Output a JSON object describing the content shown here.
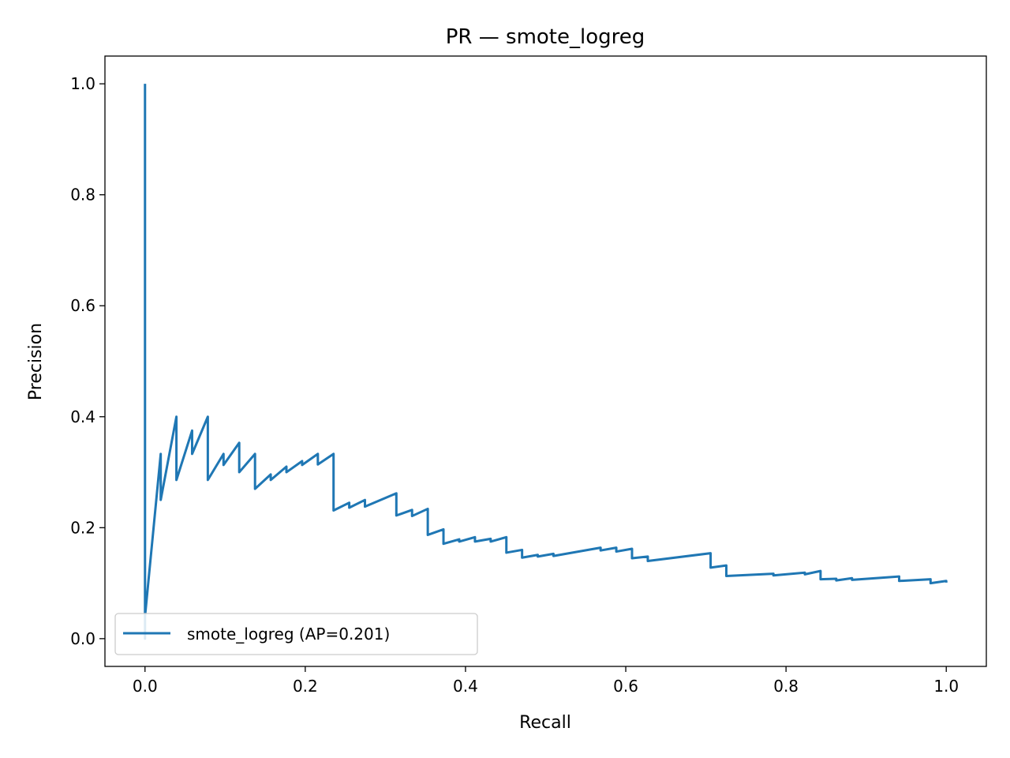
{
  "chart_data": {
    "type": "line",
    "title": "PR — smote_logreg",
    "xlabel": "Recall",
    "ylabel": "Precision",
    "xlim": [
      -0.05,
      1.05
    ],
    "ylim": [
      -0.05,
      1.05
    ],
    "xticks": [
      0.0,
      0.2,
      0.4,
      0.6,
      0.8,
      1.0
    ],
    "xtick_labels": [
      "0.0",
      "0.2",
      "0.4",
      "0.6",
      "0.8",
      "1.0"
    ],
    "yticks": [
      0.0,
      0.2,
      0.4,
      0.6,
      0.8,
      1.0
    ],
    "ytick_labels": [
      "0.0",
      "0.2",
      "0.4",
      "0.6",
      "0.8",
      "1.0"
    ],
    "grid": false,
    "legend": {
      "placement": "lower-left",
      "entries": [
        "smote_logreg (AP=0.201)"
      ]
    },
    "series": [
      {
        "name": "smote_logreg (AP=0.201)",
        "color": "#1f77b4",
        "points": [
          [
            0.0,
            1.0
          ],
          [
            0.0,
            0.0
          ],
          [
            0.0,
            0.04
          ],
          [
            0.0196,
            0.333
          ],
          [
            0.0196,
            0.25
          ],
          [
            0.0392,
            0.4
          ],
          [
            0.0392,
            0.286
          ],
          [
            0.0588,
            0.375
          ],
          [
            0.0588,
            0.333
          ],
          [
            0.0784,
            0.4
          ],
          [
            0.0784,
            0.286
          ],
          [
            0.098,
            0.333
          ],
          [
            0.098,
            0.313
          ],
          [
            0.1176,
            0.353
          ],
          [
            0.1176,
            0.3
          ],
          [
            0.1373,
            0.333
          ],
          [
            0.1373,
            0.27
          ],
          [
            0.1569,
            0.296
          ],
          [
            0.1569,
            0.286
          ],
          [
            0.1765,
            0.31
          ],
          [
            0.1765,
            0.3
          ],
          [
            0.1961,
            0.32
          ],
          [
            0.1961,
            0.313
          ],
          [
            0.2157,
            0.333
          ],
          [
            0.2157,
            0.314
          ],
          [
            0.2353,
            0.333
          ],
          [
            0.2353,
            0.231
          ],
          [
            0.2549,
            0.245
          ],
          [
            0.2549,
            0.236
          ],
          [
            0.2745,
            0.25
          ],
          [
            0.2745,
            0.238
          ],
          [
            0.3137,
            0.262
          ],
          [
            0.3137,
            0.222
          ],
          [
            0.3333,
            0.232
          ],
          [
            0.3333,
            0.221
          ],
          [
            0.3529,
            0.234
          ],
          [
            0.3529,
            0.187
          ],
          [
            0.3725,
            0.197
          ],
          [
            0.3725,
            0.171
          ],
          [
            0.3922,
            0.179
          ],
          [
            0.3922,
            0.175
          ],
          [
            0.4118,
            0.183
          ],
          [
            0.4118,
            0.175
          ],
          [
            0.4314,
            0.18
          ],
          [
            0.4314,
            0.175
          ],
          [
            0.451,
            0.183
          ],
          [
            0.451,
            0.155
          ],
          [
            0.4706,
            0.16
          ],
          [
            0.4706,
            0.146
          ],
          [
            0.4902,
            0.151
          ],
          [
            0.4902,
            0.148
          ],
          [
            0.5098,
            0.153
          ],
          [
            0.5098,
            0.149
          ],
          [
            0.5686,
            0.164
          ],
          [
            0.5686,
            0.159
          ],
          [
            0.5882,
            0.164
          ],
          [
            0.5882,
            0.157
          ],
          [
            0.6078,
            0.162
          ],
          [
            0.6078,
            0.145
          ],
          [
            0.6275,
            0.148
          ],
          [
            0.6275,
            0.14
          ],
          [
            0.7059,
            0.154
          ],
          [
            0.7059,
            0.128
          ],
          [
            0.7255,
            0.132
          ],
          [
            0.7255,
            0.113
          ],
          [
            0.7843,
            0.117
          ],
          [
            0.7843,
            0.114
          ],
          [
            0.8235,
            0.119
          ],
          [
            0.8235,
            0.116
          ],
          [
            0.8431,
            0.122
          ],
          [
            0.8431,
            0.107
          ],
          [
            0.8627,
            0.108
          ],
          [
            0.8627,
            0.105
          ],
          [
            0.8824,
            0.109
          ],
          [
            0.8824,
            0.106
          ],
          [
            0.9412,
            0.112
          ],
          [
            0.9412,
            0.104
          ],
          [
            0.9804,
            0.107
          ],
          [
            0.9804,
            0.1
          ],
          [
            1.0,
            0.104
          ],
          [
            1.0,
            0.101
          ]
        ]
      }
    ]
  }
}
